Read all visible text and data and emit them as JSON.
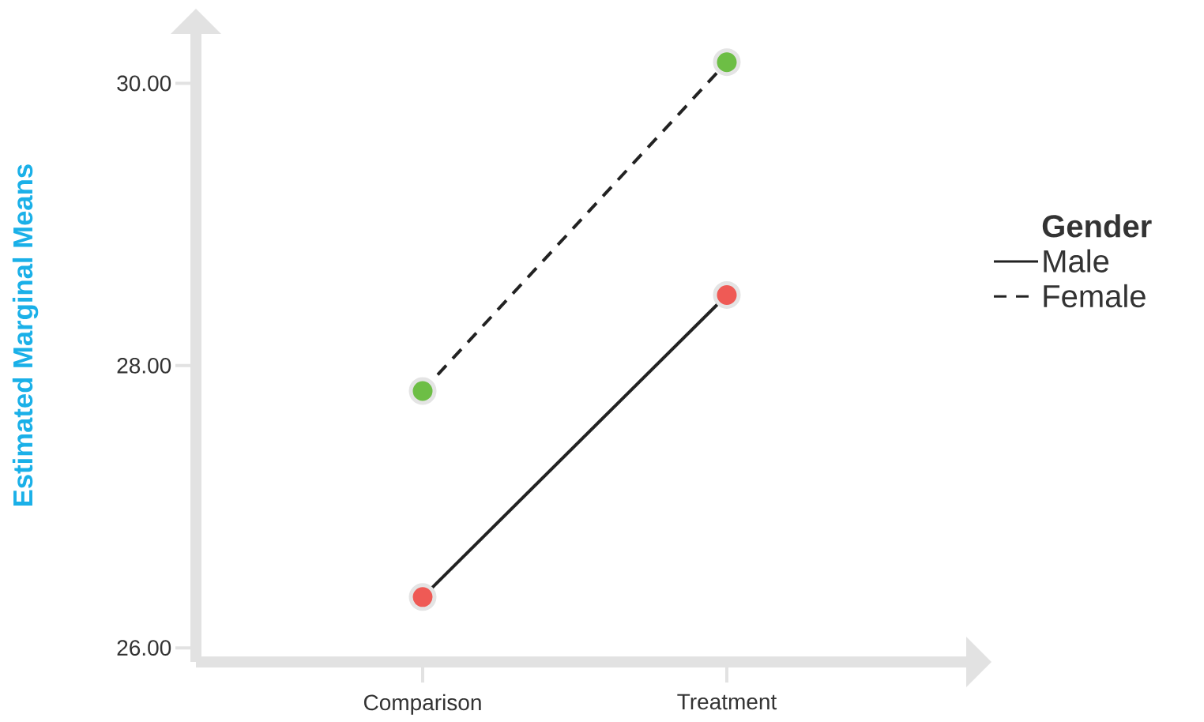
{
  "chart_data": {
    "type": "line",
    "ylabel": "Estimated Marginal Means",
    "legend_title": "Gender",
    "categories": [
      "Comparison",
      "Treatment"
    ],
    "series": [
      {
        "name": "Male",
        "color": "#222222",
        "colors": [
          "#ef5a55",
          "#ef5a55"
        ],
        "line_style": "solid",
        "values": [
          26.36,
          28.5
        ]
      },
      {
        "name": "Female",
        "color": "#222222",
        "colors": [
          "#6dbe45",
          "#6dbe45"
        ],
        "line_style": "dashed",
        "values": [
          27.82,
          30.15
        ]
      }
    ],
    "ylim": [
      25.9,
      30.35
    ],
    "yticks": [
      {
        "value": 26,
        "label": "26.00"
      },
      {
        "value": 28,
        "label": "28.00"
      },
      {
        "value": 30,
        "label": "30.00"
      }
    ],
    "grid": false,
    "legend": "right",
    "marker": "circle"
  }
}
